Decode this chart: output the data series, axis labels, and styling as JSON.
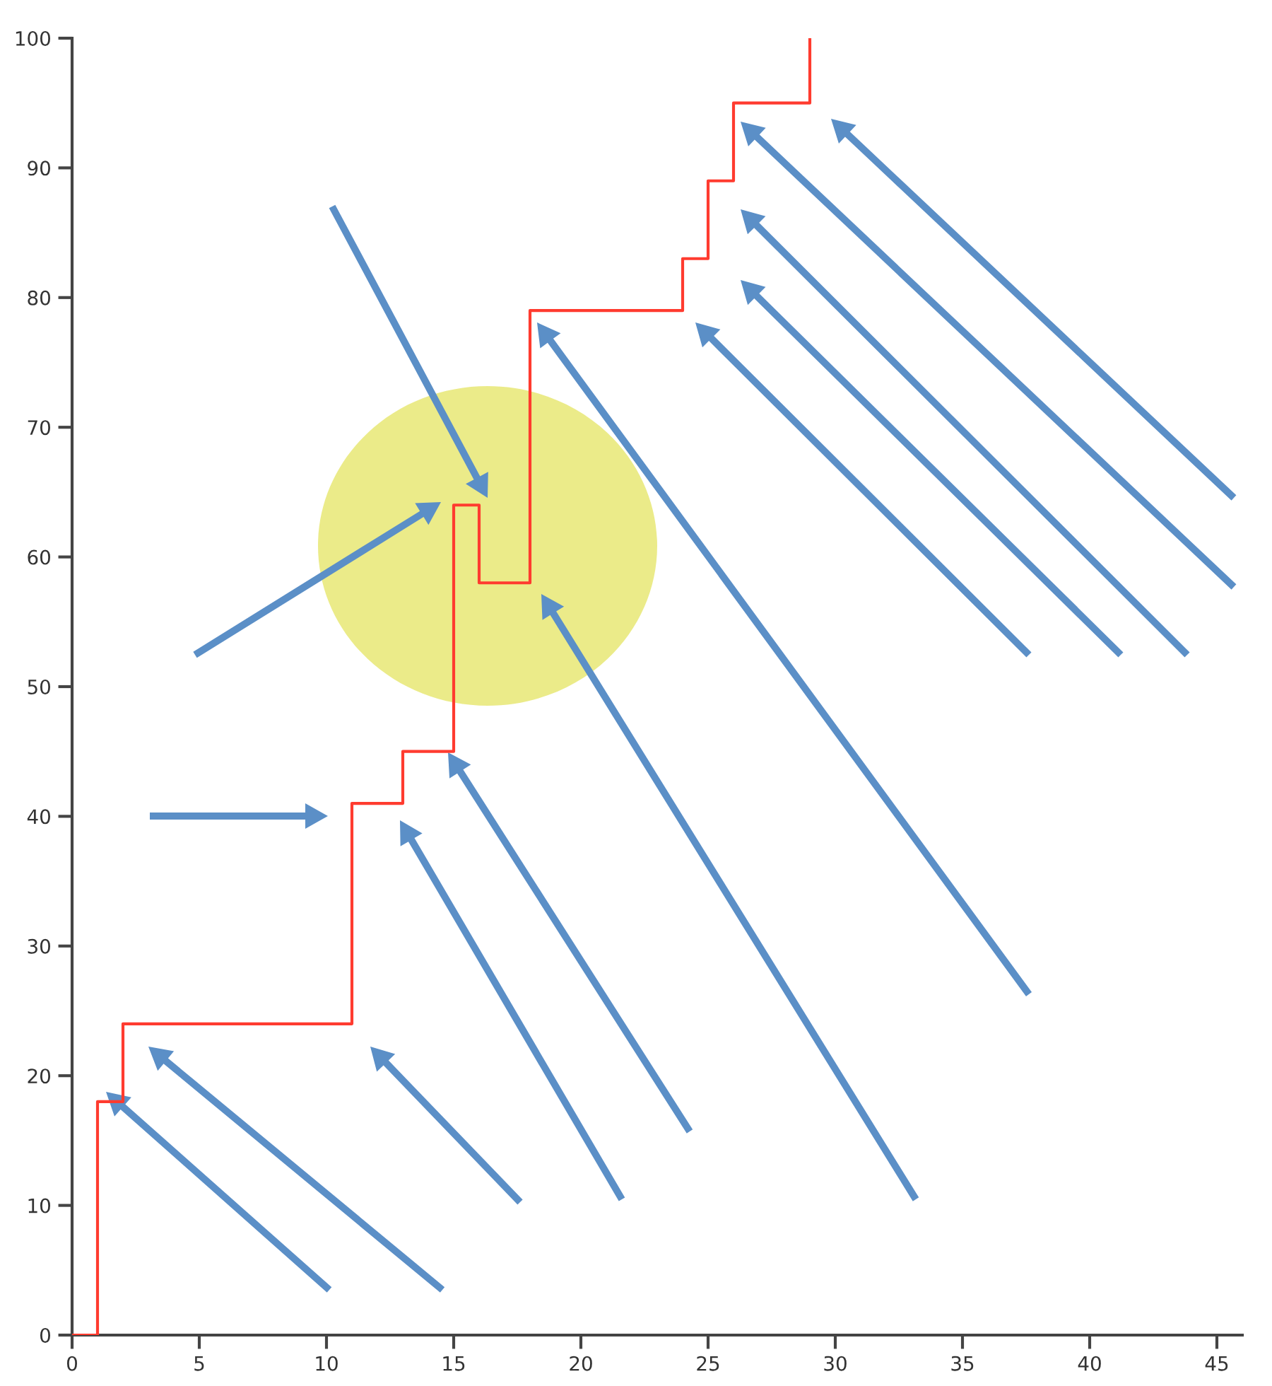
{
  "chart_data": {
    "type": "step",
    "x": [
      0,
      1,
      2,
      11,
      13,
      15,
      16,
      18,
      24,
      25,
      26,
      29,
      29
    ],
    "series": [
      {
        "color": "#ff3b2f",
        "values": [
          0,
          18,
          24,
          41,
          45,
          64,
          58,
          79,
          83,
          89,
          95,
          95,
          100
        ]
      }
    ],
    "xlim": [
      0,
      46
    ],
    "ylim": [
      0,
      100
    ],
    "xticks": [
      0,
      5,
      10,
      15,
      20,
      25,
      30,
      35,
      40,
      45
    ],
    "yticks": [
      0,
      10,
      20,
      30,
      40,
      50,
      60,
      70,
      80,
      90,
      100
    ]
  }
}
